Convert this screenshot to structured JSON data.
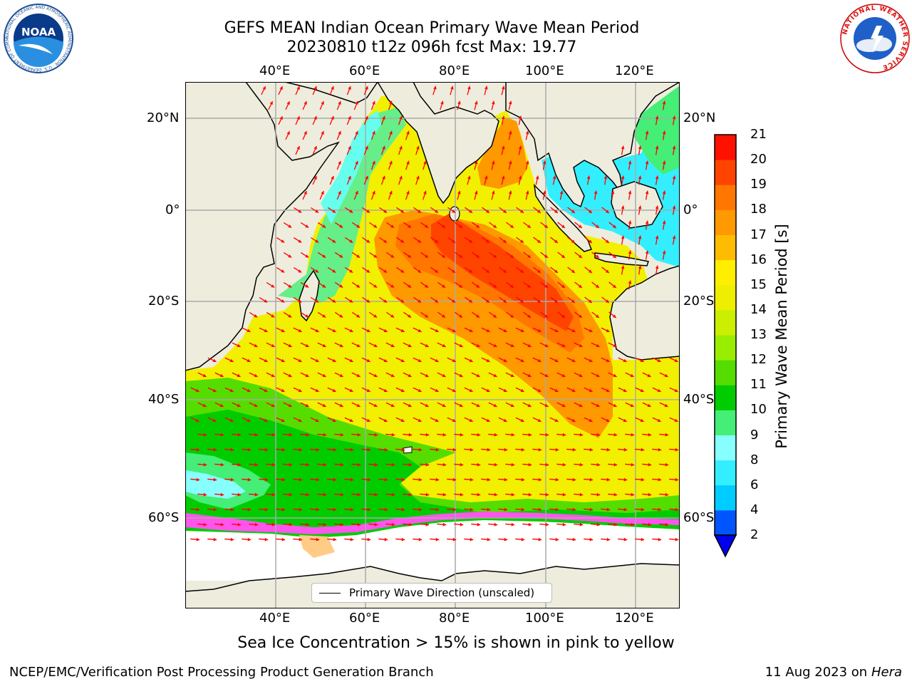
{
  "title": {
    "line1": "GEFS MEAN Indian Ocean Primary Wave Mean Period",
    "line2": "20230810 t12z 096h fcst   Max: 19.77"
  },
  "map": {
    "lon_labels": [
      "40°E",
      "60°E",
      "80°E",
      "100°E",
      "120°E"
    ],
    "lat_labels": [
      "20°N",
      "0°",
      "20°S",
      "40°S",
      "60°S"
    ],
    "land_color": "#eeeddd",
    "arrow_color": "#ff0000",
    "legend_label": "Primary Wave Direction (unscaled)"
  },
  "colorbar": {
    "label": "Primary Wave Mean Period [s]",
    "ticks": [
      "2",
      "4",
      "6",
      "8",
      "9",
      "10",
      "11",
      "12",
      "13",
      "14",
      "15",
      "16",
      "17",
      "18",
      "19",
      "20",
      "21"
    ],
    "colors": [
      "#0055ff",
      "#00ccff",
      "#33eeff",
      "#88ffff",
      "#44ee77",
      "#00cc00",
      "#55dd00",
      "#99ee00",
      "#ccee00",
      "#eeee00",
      "#ffee00",
      "#ffbb00",
      "#ff9900",
      "#ff7700",
      "#ff4400",
      "#ff1100"
    ],
    "underflow_color": "#0000ee"
  },
  "footer": {
    "sea_ice_note": "Sea Ice Concentration > 15% is shown in pink to yellow",
    "credit": "NCEP/EMC/Verification Post Processing Product Generation Branch",
    "date": "11 Aug 2023 on",
    "host": "Hera"
  },
  "logos": {
    "left_text": "NOAA",
    "left_ring_text": "NATIONAL OCEANIC AND ATMOSPHERIC ADMINISTRATION · U.S. DEPARTMENT OF COMMERCE",
    "right_ring_text": "NATIONAL WEATHER SERVICE"
  }
}
